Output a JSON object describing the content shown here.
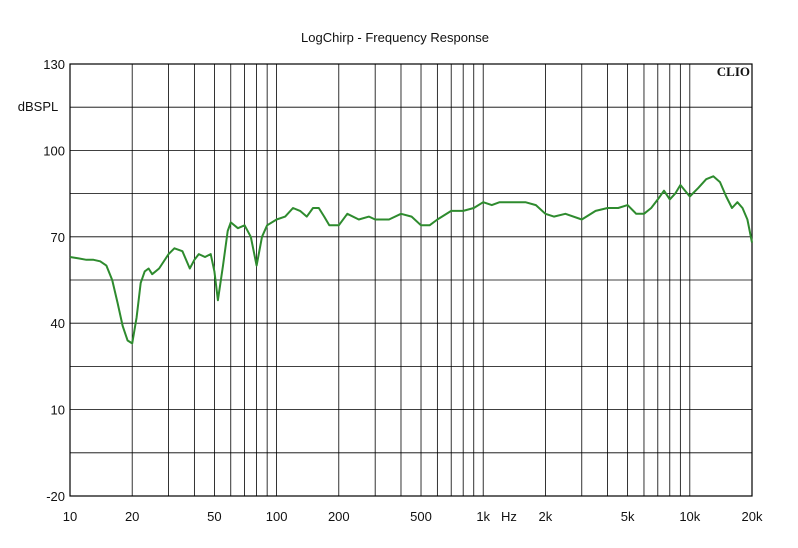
{
  "chart_data": {
    "type": "line",
    "title": "LogChirp - Frequency Response",
    "brand": "CLIO",
    "ylabel": "dBSPL",
    "x_unit": "Hz",
    "x_scale": "log",
    "xlim": [
      10,
      20000
    ],
    "ylim": [
      -20,
      130
    ],
    "grid": true,
    "x_tick_labels": [
      {
        "value": 10,
        "label": "10"
      },
      {
        "value": 20,
        "label": "20"
      },
      {
        "value": 50,
        "label": "50"
      },
      {
        "value": 100,
        "label": "100"
      },
      {
        "value": 200,
        "label": "200"
      },
      {
        "value": 500,
        "label": "500"
      },
      {
        "value": 1000,
        "label": "1k"
      },
      {
        "value": 2000,
        "label": "2k"
      },
      {
        "value": 5000,
        "label": "5k"
      },
      {
        "value": 10000,
        "label": "10k"
      },
      {
        "value": 20000,
        "label": "20k"
      }
    ],
    "y_tick_labels": [
      {
        "value": 130,
        "label": "130"
      },
      {
        "value": 100,
        "label": "100"
      },
      {
        "value": 70,
        "label": "70"
      },
      {
        "value": 40,
        "label": "40"
      },
      {
        "value": 10,
        "label": "10"
      },
      {
        "value": -20,
        "label": "-20"
      }
    ],
    "line_color": "#2e8b2e",
    "series": [
      {
        "x": [
          10,
          11,
          12,
          13,
          14,
          15,
          16,
          17,
          18,
          19,
          20,
          21,
          22,
          23,
          24,
          25,
          27,
          30,
          32,
          35,
          38,
          40,
          42,
          45,
          48,
          50,
          52,
          55,
          58,
          60,
          65,
          70,
          75,
          80,
          85,
          90,
          100,
          110,
          120,
          130,
          140,
          150,
          160,
          170,
          180,
          200,
          220,
          250,
          280,
          300,
          350,
          400,
          450,
          500,
          550,
          600,
          700,
          800,
          900,
          1000,
          1100,
          1200,
          1400,
          1600,
          1800,
          2000,
          2200,
          2500,
          3000,
          3500,
          4000,
          4500,
          5000,
          5500,
          6000,
          6500,
          7000,
          7500,
          8000,
          8500,
          9000,
          10000,
          11000,
          12000,
          13000,
          14000,
          15000,
          16000,
          17000,
          18000,
          19000,
          20000
        ],
        "y": [
          63,
          62.5,
          62,
          62,
          61.5,
          60,
          55,
          47,
          39,
          34,
          33,
          42,
          54,
          58,
          59,
          57,
          59,
          64,
          66,
          65,
          59,
          62,
          64,
          63,
          64,
          58,
          48,
          60,
          72,
          75,
          73,
          74,
          70,
          60,
          70,
          74,
          76,
          77,
          80,
          79,
          77,
          80,
          80,
          77,
          74,
          74,
          78,
          76,
          77,
          76,
          76,
          78,
          77,
          74,
          74,
          76,
          79,
          79,
          80,
          82,
          81,
          82,
          82,
          82,
          81,
          78,
          77,
          78,
          76,
          79,
          80,
          80,
          81,
          78,
          78,
          80,
          83,
          86,
          83,
          85,
          88,
          84,
          87,
          90,
          91,
          89,
          84,
          80,
          82,
          80,
          76,
          68
        ]
      }
    ]
  }
}
